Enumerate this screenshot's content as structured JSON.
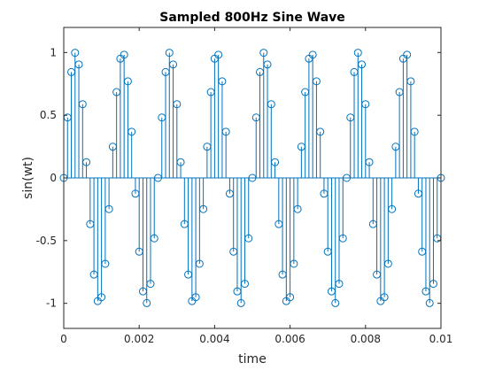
{
  "chart_data": {
    "type": "stem",
    "title": "Sampled 800Hz Sine Wave",
    "xlabel": "time",
    "ylabel": "sin(wt)",
    "xlim": [
      0,
      0.01
    ],
    "ylim": [
      -1.2,
      1.2
    ],
    "xticks": [
      0,
      0.002,
      0.004,
      0.006,
      0.008,
      0.01
    ],
    "xtick_labels": [
      "0",
      "0.002",
      "0.004",
      "0.006",
      "0.008",
      "0.01"
    ],
    "yticks": [
      -1,
      -0.5,
      0,
      0.5,
      1
    ],
    "ytick_labels": [
      "-1",
      "-0.5",
      "0",
      "0.5",
      "1"
    ],
    "grid": false,
    "legend": "none",
    "series": [
      {
        "frequency_hz": 800,
        "sample_interval_s": 0.0001,
        "x_start": 0,
        "x_end": 0.01,
        "samples": 101,
        "marker": "circle-open",
        "color": "#0072BD"
      }
    ]
  }
}
